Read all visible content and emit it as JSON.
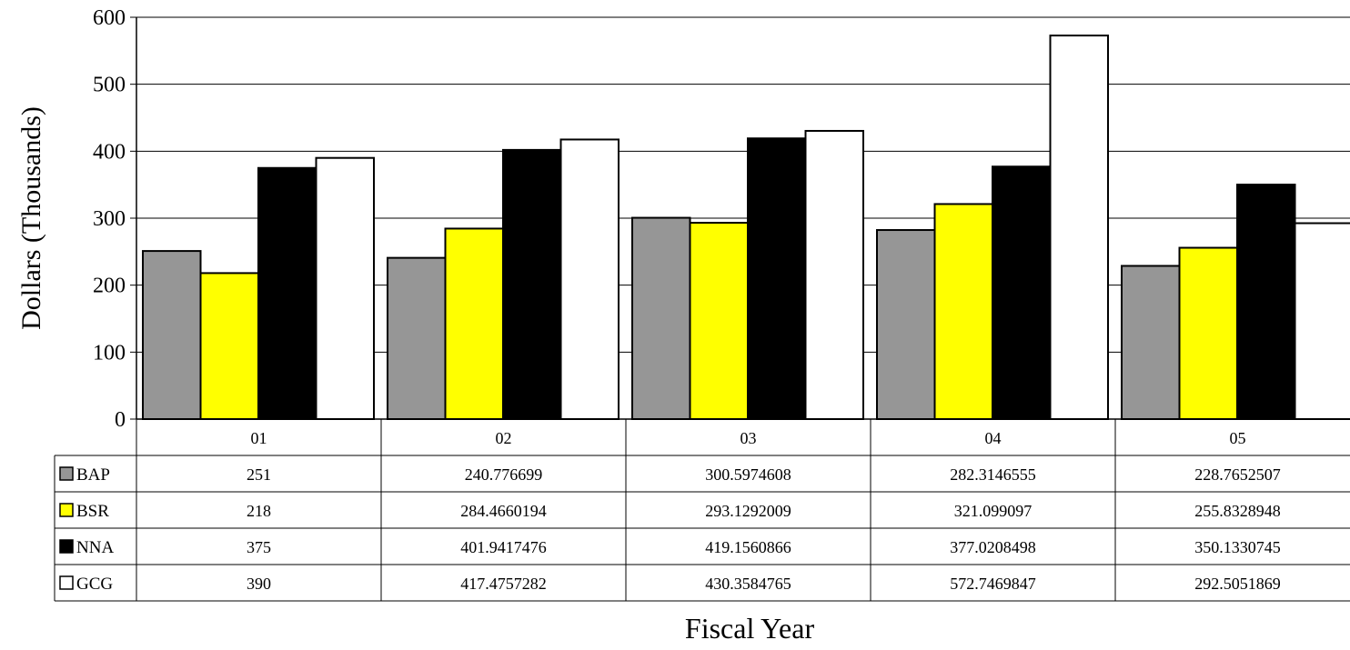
{
  "chart_data": {
    "type": "bar",
    "title": "",
    "xlabel": "Fiscal Year",
    "ylabel": "Dollars (Thousands)",
    "ylim": [
      0,
      600
    ],
    "yticks": [
      "0",
      "100",
      "200",
      "300",
      "400",
      "500",
      "600"
    ],
    "grid": true,
    "legend": "data table below chart",
    "categories": [
      "01",
      "02",
      "03",
      "04",
      "05"
    ],
    "series": [
      {
        "name": "BAP",
        "color": "#969696",
        "values": [
          251,
          240.776699,
          300.5974608,
          282.3146555,
          228.7652507
        ],
        "labels": [
          "251",
          "240.776699",
          "300.5974608",
          "282.3146555",
          "228.7652507"
        ]
      },
      {
        "name": "BSR",
        "color": "#ffff00",
        "values": [
          218,
          284.4660194,
          293.1292009,
          321.099097,
          255.8328948
        ],
        "labels": [
          "218",
          "284.4660194",
          "293.1292009",
          "321.099097",
          "255.8328948"
        ]
      },
      {
        "name": "NNA",
        "color": "#000000",
        "values": [
          375,
          401.9417476,
          419.1560866,
          377.0208498,
          350.1330745
        ],
        "labels": [
          "375",
          "401.9417476",
          "419.1560866",
          "377.0208498",
          "350.1330745"
        ]
      },
      {
        "name": "GCG",
        "color": "#ffffff",
        "values": [
          390,
          417.4757282,
          430.3584765,
          572.7469847,
          292.5051869
        ],
        "labels": [
          "390",
          "417.4757282",
          "430.3584765",
          "572.7469847",
          "292.5051869"
        ]
      }
    ]
  }
}
